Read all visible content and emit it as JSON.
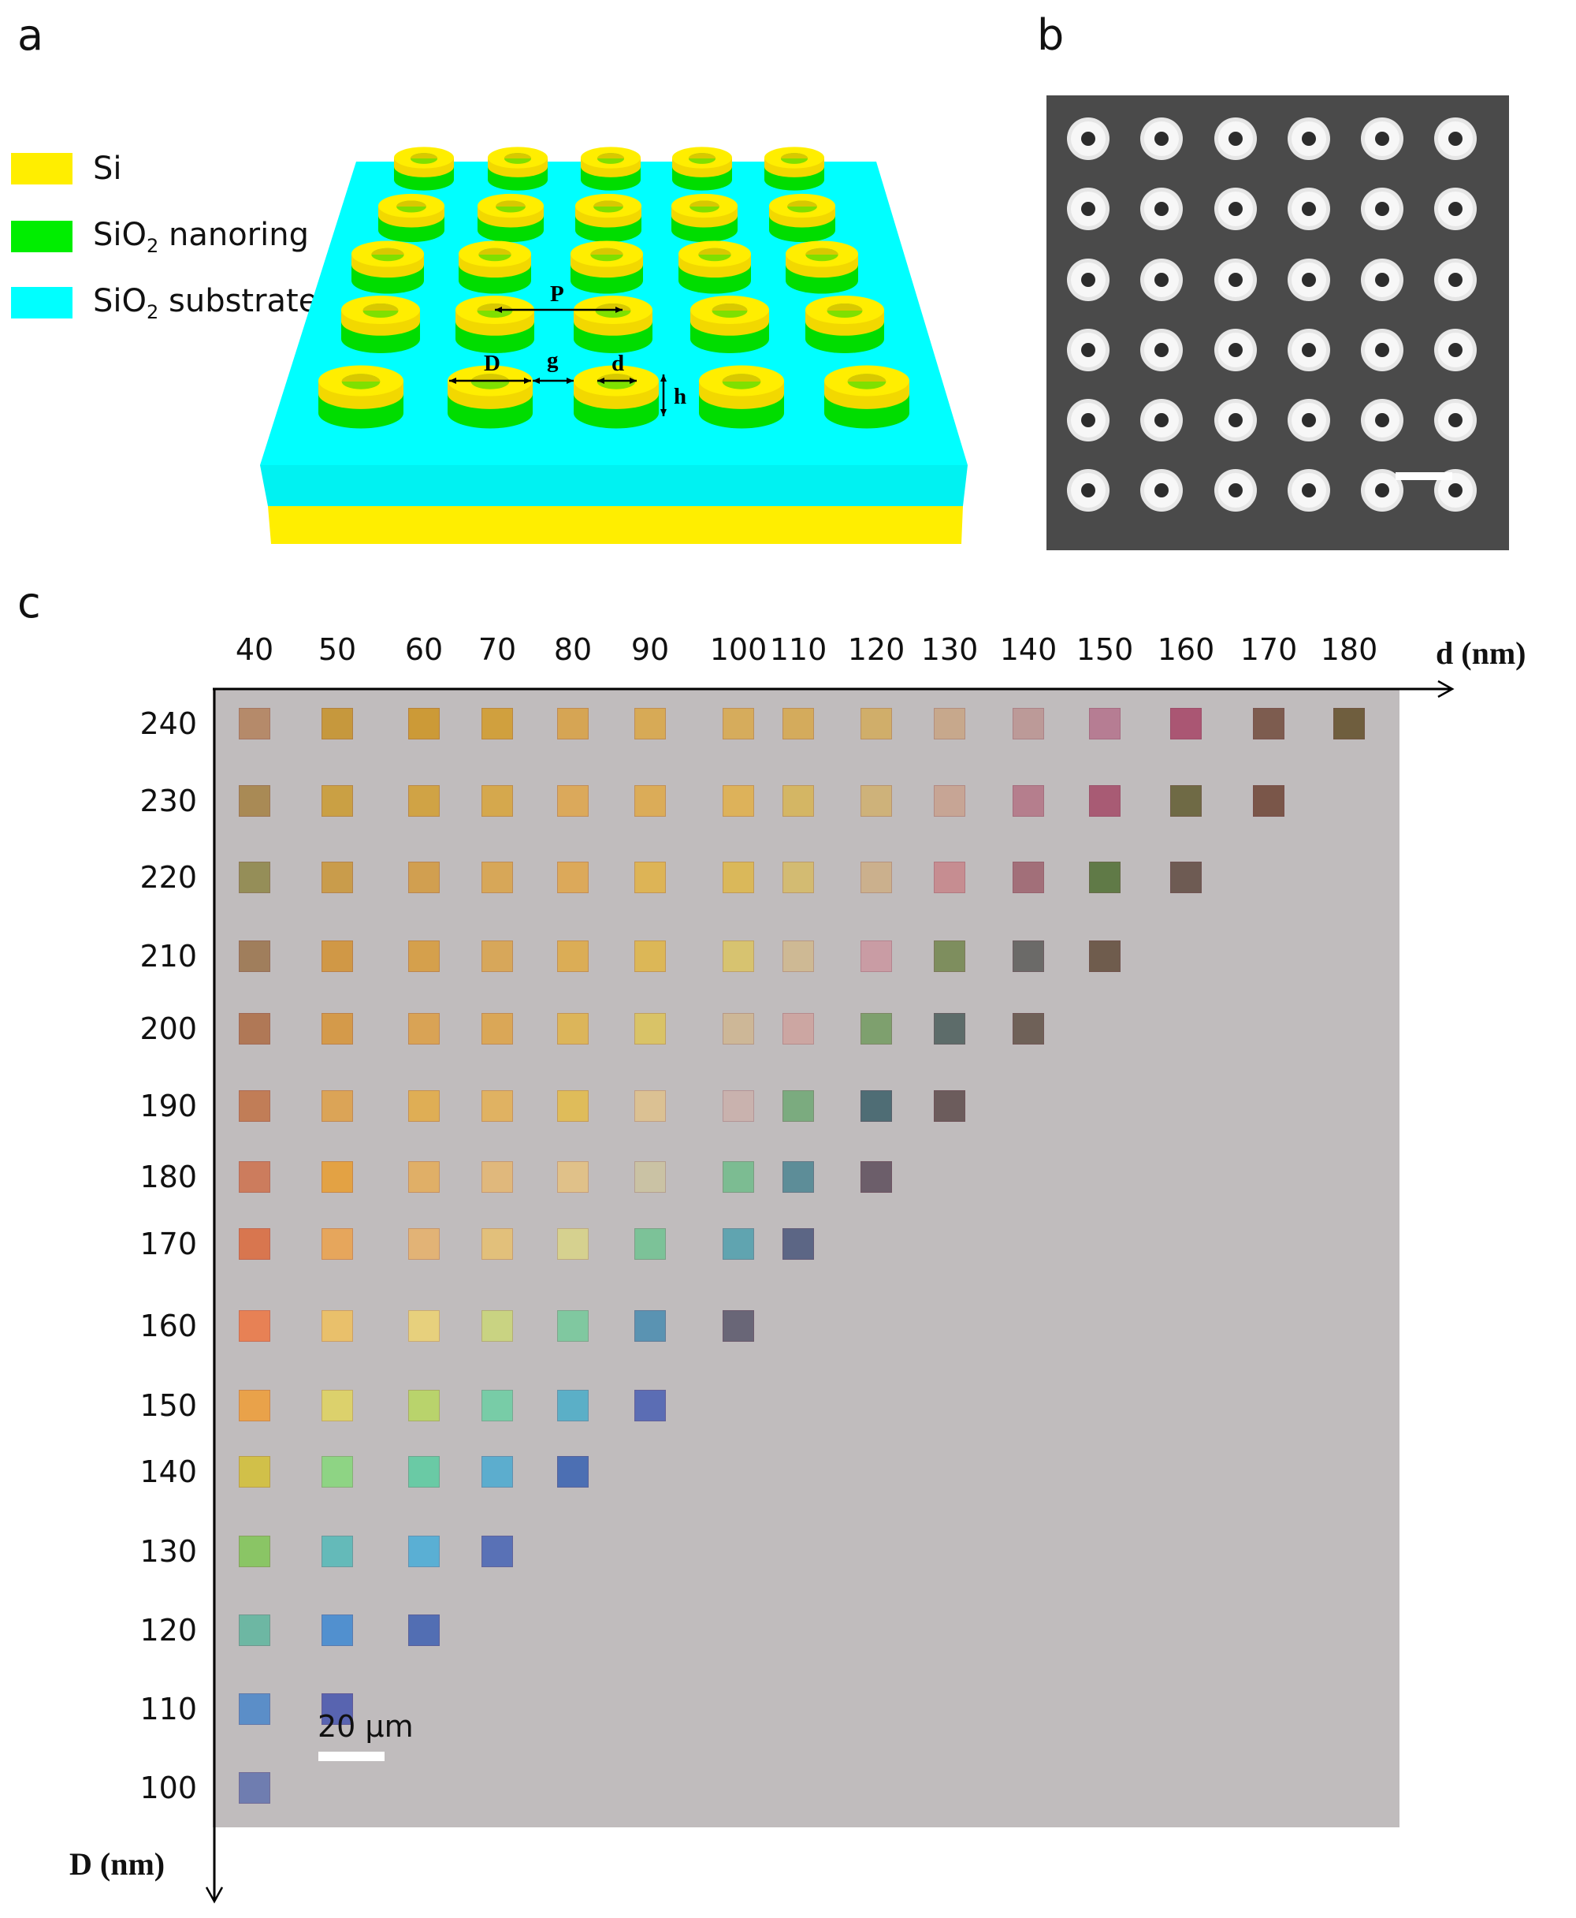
{
  "panels": {
    "a": "a",
    "b": "b",
    "c": "c"
  },
  "legend": [
    {
      "label": "Si",
      "sub": "",
      "rest": "",
      "color": "#ffee00"
    },
    {
      "label": "SiO",
      "sub": "2",
      "rest": " nanoring",
      "color": "#00ee00"
    },
    {
      "label": "SiO",
      "sub": "2",
      "rest": " substrate",
      "color": "#00ffff"
    }
  ],
  "schematic": {
    "labels": {
      "P": "P",
      "D": "D",
      "g": "g",
      "d": "d",
      "h": "h"
    },
    "colors": {
      "si": "#ffee00",
      "nanoring": "#00dd00",
      "substrate": "#00ffff"
    }
  },
  "sem": {
    "rows": 6,
    "cols": 6,
    "background": "#4a4a4a"
  },
  "chart_data": {
    "type": "heatmap",
    "xlabel": "d (nm)",
    "ylabel": "D (nm)",
    "x": [
      40,
      50,
      60,
      70,
      80,
      90,
      100,
      110,
      120,
      130,
      140,
      150,
      160,
      170,
      180
    ],
    "y": [
      240,
      230,
      220,
      210,
      200,
      190,
      180,
      170,
      160,
      150,
      140,
      130,
      120,
      110,
      100
    ],
    "scale_bar": "20 μm",
    "background": "#c0bcbd",
    "cells": [
      [
        "#b58a6a",
        "#c6983d",
        "#cc9a37",
        "#d0a03e",
        "#d6a554",
        "#d7aa56",
        "#d6ac5c",
        "#d4ab5c",
        "#d0ae6a",
        "#c7a88c",
        "#bc9a98",
        "#b67d93",
        "#aa5673",
        "#7d5c4f",
        "#6f5e3e"
      ],
      [
        "#a98a55",
        "#caa044",
        "#d0a345",
        "#d5a84d",
        "#dba95b",
        "#dbac58",
        "#ddb25a",
        "#d4b664",
        "#ceb27a",
        "#c7a595",
        "#b57e8d",
        "#a85b74",
        "#6f6a45",
        "#7a5649"
      ],
      [
        "#958e58",
        "#c99c4b",
        "#d19f50",
        "#d7a758",
        "#dca95a",
        "#ddb456",
        "#dab85a",
        "#d3bb72",
        "#cbb08d",
        "#c68d91",
        "#a26f79",
        "#607a47",
        "#6e5b53"
      ],
      [
        "#a07e5c",
        "#d09846",
        "#d5a04c",
        "#d7a75a",
        "#dbad56",
        "#dcb757",
        "#d7c370",
        "#ceb994",
        "#c99ca4",
        "#7e8e5e",
        "#6b6a68",
        "#6f5c4d"
      ],
      [
        "#b07856",
        "#d49a4a",
        "#d9a355",
        "#daa757",
        "#dcb55a",
        "#d9c367",
        "#cdb797",
        "#cca6a2",
        "#7ea06e",
        "#5d6c6a",
        "#6f6158"
      ],
      [
        "#c17d57",
        "#dba457",
        "#dfae55",
        "#e0b262",
        "#dfbc5a",
        "#dbc193",
        "#c9b2ae",
        "#7bab7f",
        "#4f6d75",
        "#6c5c5c"
      ],
      [
        "#cc7c5d",
        "#e3a244",
        "#e0af67",
        "#e0b87c",
        "#e0c189",
        "#cac2a4",
        "#7cbc92",
        "#5d8d98",
        "#6c5e6a"
      ],
      [
        "#d8764f",
        "#e6a65c",
        "#e2b376",
        "#e2c07b",
        "#d6d18f",
        "#7cc298",
        "#60a4b0",
        "#5c6685"
      ],
      [
        "#e78155",
        "#e9c06b",
        "#e7d07d",
        "#c9d382",
        "#80c8a0",
        "#5a93b2",
        "#696677"
      ],
      [
        "#e9a24a",
        "#dcd16c",
        "#b9d36c",
        "#78cca7",
        "#5bafc7",
        "#5b6db4"
      ],
      [
        "#d1c049",
        "#8ed484",
        "#6acaa5",
        "#5cadce",
        "#4c6fb3"
      ],
      [
        "#8ac565",
        "#64bab9",
        "#5aafd4",
        "#5971b6"
      ],
      [
        "#6db7a3",
        "#5190cf",
        "#526eb3"
      ],
      [
        "#5b8ec8",
        "#5864b0"
      ],
      [
        "#6f7db0"
      ]
    ]
  }
}
